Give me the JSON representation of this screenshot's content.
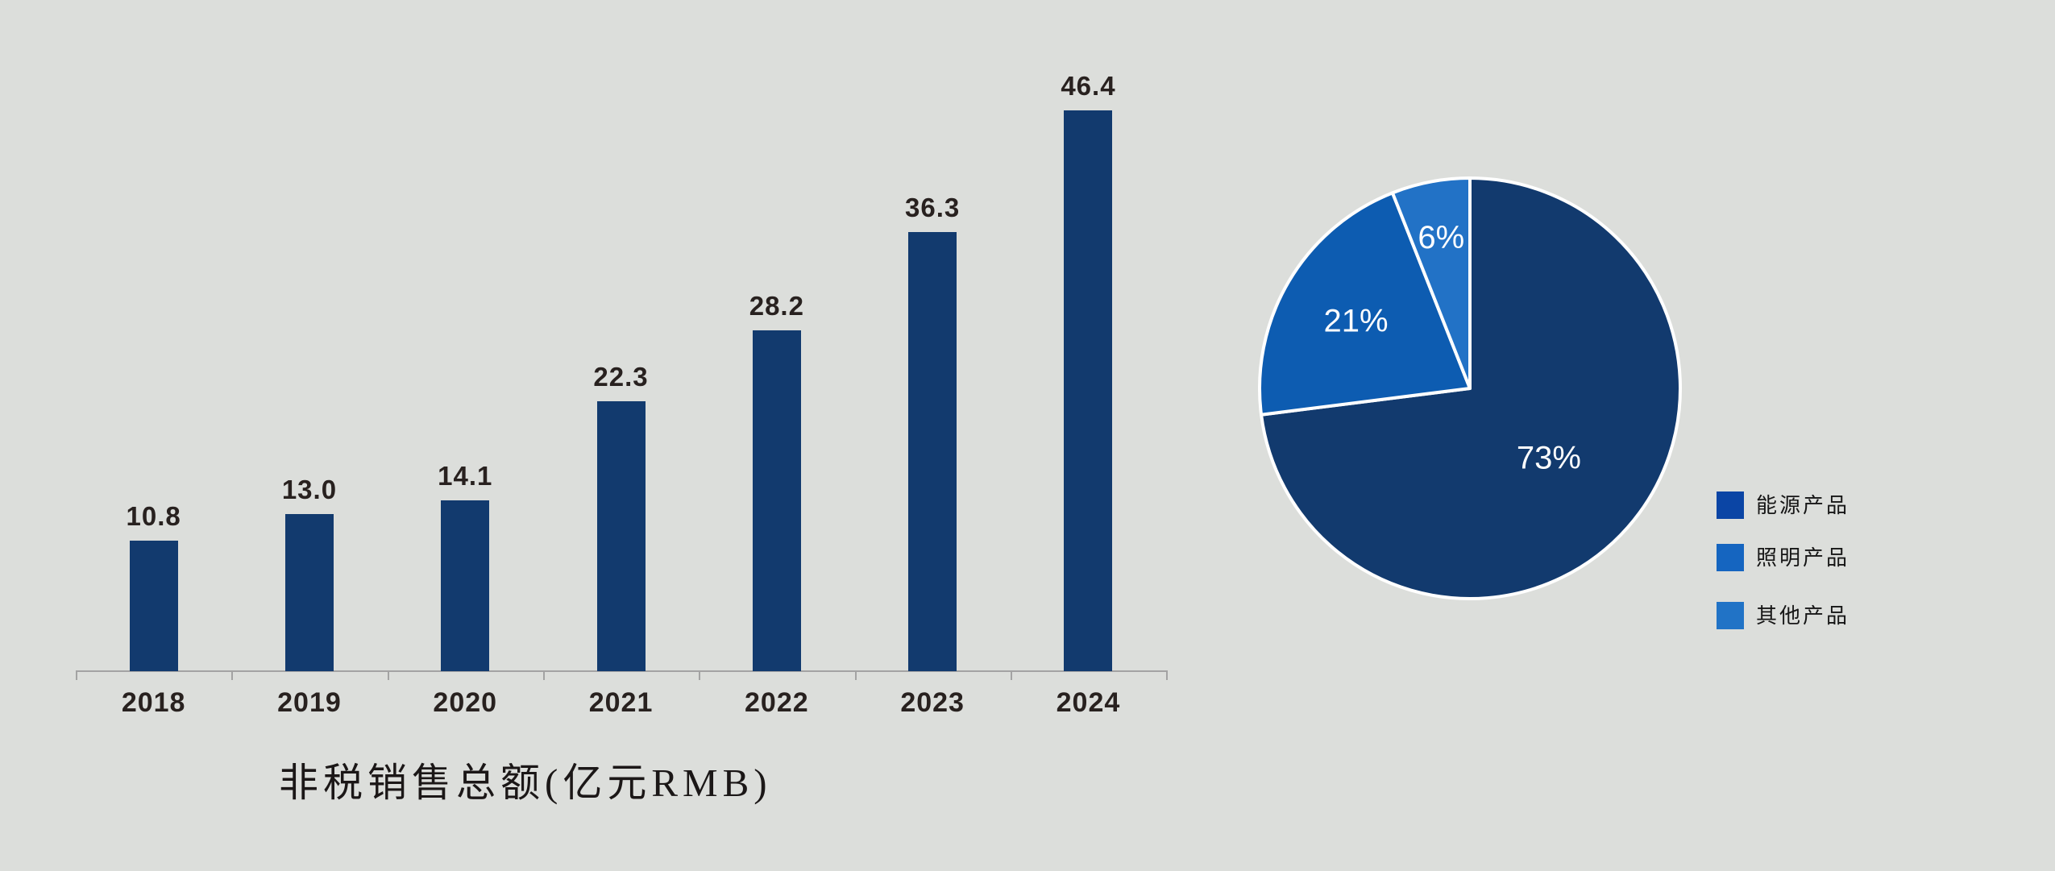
{
  "background_color": "#dcdedb",
  "chart_data": [
    {
      "type": "bar",
      "title": "非税销售总额(亿元RMB)",
      "categories": [
        "2018",
        "2019",
        "2020",
        "2021",
        "2022",
        "2023",
        "2024"
      ],
      "values": [
        10.8,
        13.0,
        14.1,
        22.3,
        28.2,
        36.3,
        46.4
      ],
      "ylim": [
        0,
        50
      ],
      "grid": false,
      "value_labels_shown": true,
      "bar_color": "#123a6e",
      "label_color": "#28211f",
      "axis_color": "#a3a3a3",
      "title_color": "#1b1717",
      "xlabel": "",
      "ylabel": ""
    },
    {
      "type": "pie",
      "start_at": "12-oclock",
      "direction": "clockwise",
      "slices": [
        {
          "label": "能源产品",
          "value": 73,
          "display": "73%",
          "color": "#123a6e",
          "legend_color": "#0b45a5"
        },
        {
          "label": "照明产品",
          "value": 21,
          "display": "21%",
          "color": "#0d5cb1",
          "legend_color": "#1565c0"
        },
        {
          "label": "其他产品",
          "value": 6,
          "display": "6%",
          "color": "#2272c6",
          "legend_color": "#2173c6"
        }
      ],
      "slice_label_color": "#ffffff",
      "slice_border_color": "#ffffff",
      "legend_position": "right",
      "legend_text_color": "#161616"
    }
  ]
}
